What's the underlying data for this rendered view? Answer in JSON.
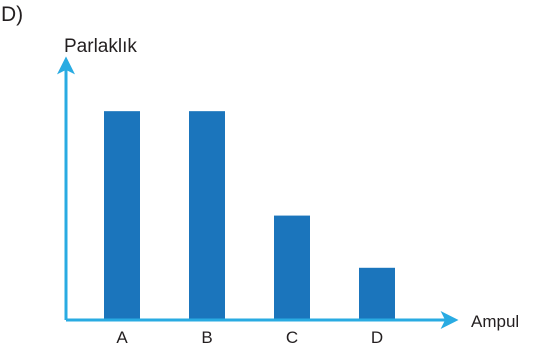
{
  "option_label": "D)",
  "chart_data": {
    "type": "bar",
    "title": "",
    "xlabel": "Ampul",
    "ylabel": "Parlaklık",
    "categories": [
      "A",
      "B",
      "C",
      "D"
    ],
    "values": [
      4,
      4,
      2,
      1
    ],
    "ylim": [
      0,
      4.98
    ],
    "grid": false,
    "legend": "none",
    "bar_color": "#1b75bc",
    "axis_color": "#29abe2"
  }
}
